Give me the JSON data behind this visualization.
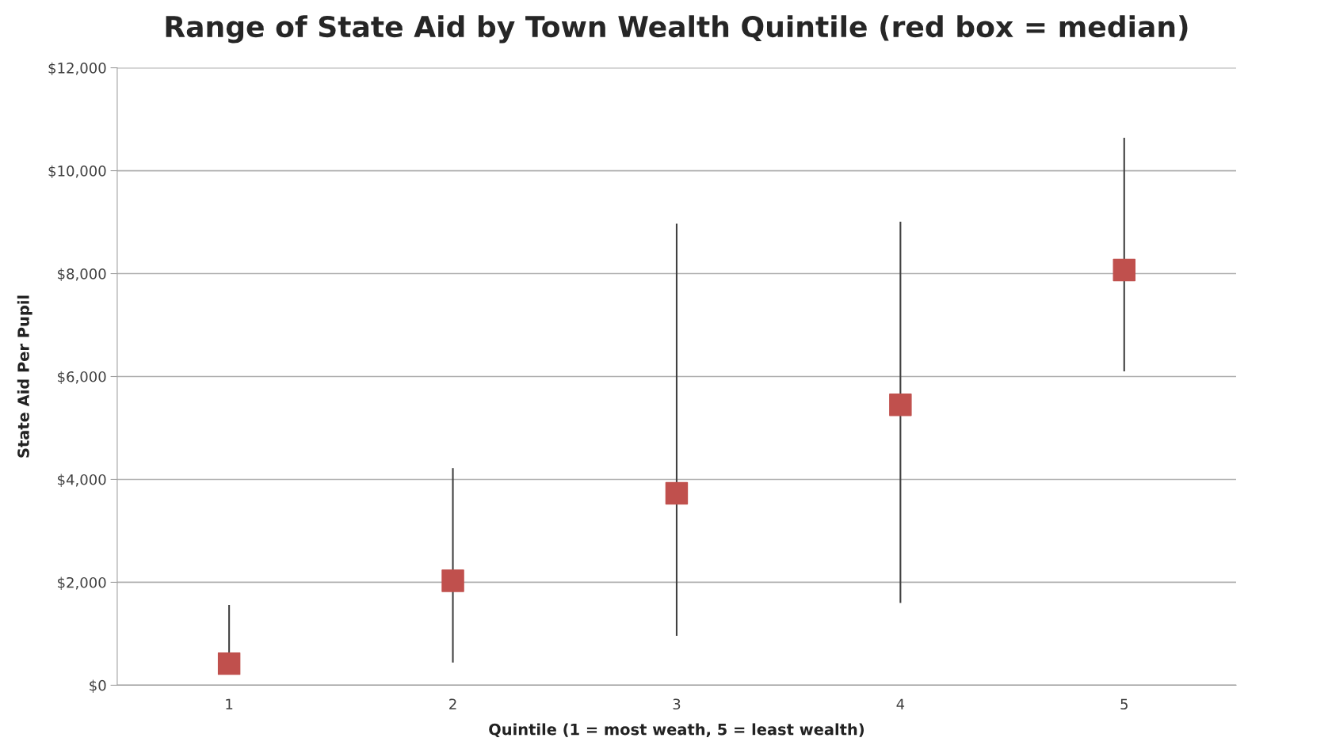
{
  "chart_data": {
    "type": "scatter",
    "title": "Range of State Aid by Town Wealth Quintile (red box = median)",
    "xlabel": "Quintile (1 = most weath, 5 = least wealth)",
    "ylabel": "State Aid Per Pupil",
    "categories": [
      "1",
      "2",
      "3",
      "4",
      "5"
    ],
    "series": [
      {
        "color": "#c0504d",
        "values": [
          420,
          2030,
          3730,
          5450,
          8070
        ],
        "errors": [
          [
            420,
            1560
          ],
          [
            440,
            4220
          ],
          [
            960,
            8970
          ],
          [
            1600,
            9010
          ],
          [
            6100,
            10640
          ]
        ]
      }
    ],
    "ylim": [
      0,
      12000
    ],
    "yticks": [
      {
        "value": 0,
        "label": "$0"
      },
      {
        "value": 2000,
        "label": "$2,000"
      },
      {
        "value": 4000,
        "label": "$4,000"
      },
      {
        "value": 6000,
        "label": "$6,000"
      },
      {
        "value": 8000,
        "label": "$8,000"
      },
      {
        "value": 10000,
        "label": "$10,000"
      },
      {
        "value": 12000,
        "label": "$12,000"
      }
    ],
    "grid": "y",
    "marker": "square",
    "legend": false
  }
}
